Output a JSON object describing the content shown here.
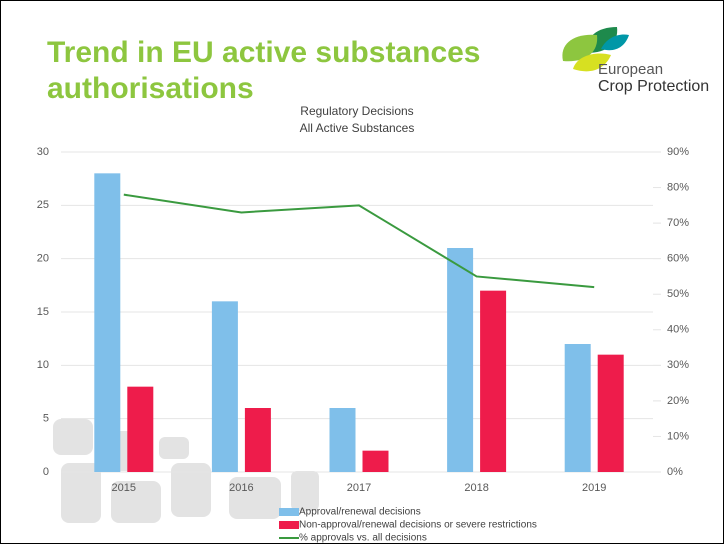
{
  "header": {
    "title": "Trend in EU active substances authorisations",
    "logo": [
      "European",
      "Crop Protection"
    ]
  },
  "chart_data": {
    "type": "bar",
    "title": "Regulatory Decisions",
    "subtitle": "All Active Substances",
    "categories": [
      "2015",
      "2016",
      "2017",
      "2018",
      "2019"
    ],
    "series": [
      {
        "name": "Approval/renewal decisions",
        "color": "#7fbfea",
        "values": [
          28,
          16,
          6,
          21,
          12
        ]
      },
      {
        "name": "Non-approval/renewal decisions or severe restrictions",
        "color": "#ee1c4b",
        "values": [
          8,
          6,
          2,
          17,
          11
        ]
      },
      {
        "name": "% approvals vs. all decisions",
        "type": "line",
        "axis": "y2",
        "color": "#3a9a3f",
        "values": [
          78,
          73,
          75,
          55,
          52
        ]
      }
    ],
    "ylim": [
      0,
      30
    ],
    "yticks": [
      0,
      5,
      10,
      15,
      20,
      25,
      30
    ],
    "y2lim": [
      0,
      90
    ],
    "y2ticks": [
      {
        "value": 0,
        "label": "0%"
      },
      {
        "value": 10,
        "label": "10%"
      },
      {
        "value": 20,
        "label": "20%"
      },
      {
        "value": 30,
        "label": "30%"
      },
      {
        "value": 40,
        "label": "40%"
      },
      {
        "value": 50,
        "label": "50%"
      },
      {
        "value": 60,
        "label": "60%"
      },
      {
        "value": 70,
        "label": "70%"
      },
      {
        "value": 80,
        "label": "80%"
      },
      {
        "value": 90,
        "label": "90%"
      }
    ],
    "grid": true
  }
}
